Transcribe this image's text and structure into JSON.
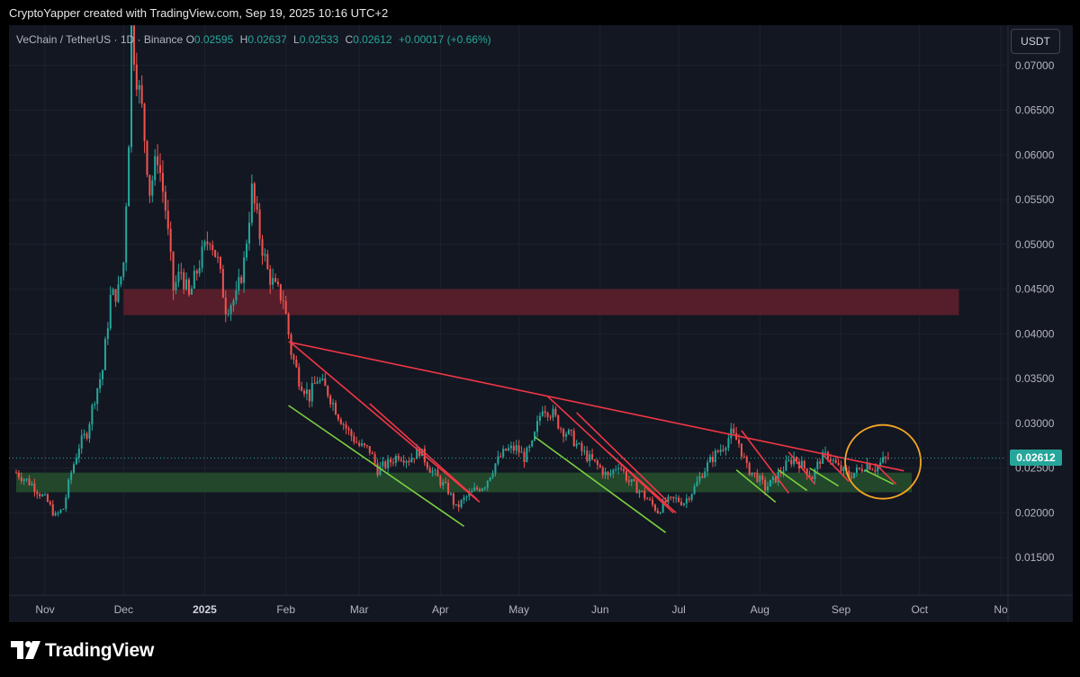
{
  "header": {
    "attribution": "CryptoYapper created with TradingView.com, Sep 19, 2025 10:16 UTC+2"
  },
  "legend": {
    "symbol": "VeChain / TetherUS · 1D · Binance",
    "o_label": "O",
    "o_value": "0.02595",
    "h_label": "H",
    "h_value": "0.02637",
    "l_label": "L",
    "l_value": "0.02533",
    "c_label": "C",
    "c_value": "0.02612",
    "change": "+0.00017 (+0.66%)"
  },
  "currency_button": "USDT",
  "last_price_label": "0.02612",
  "footer": {
    "logo_text": "TradingView",
    "logo_icon": "tradingview-logo-icon"
  },
  "colors": {
    "up": "#26a69a",
    "down": "#ef5350",
    "background": "#131722",
    "resistance_zone": "#5a1f2b",
    "support_zone": "#234a2c",
    "trendline_red": "#f23645",
    "trendline_green": "#7bcf3f",
    "highlight_circle": "#f5a623"
  },
  "chart_data": {
    "type": "candlestick",
    "x_axis": {
      "ticks": [
        {
          "label": "Nov",
          "date": "2024-11-01",
          "bold": false
        },
        {
          "label": "Dec",
          "date": "2024-12-01",
          "bold": false
        },
        {
          "label": "2025",
          "date": "2025-01-01",
          "bold": true
        },
        {
          "label": "Feb",
          "date": "2025-02-01",
          "bold": false
        },
        {
          "label": "Mar",
          "date": "2025-03-01",
          "bold": false
        },
        {
          "label": "Apr",
          "date": "2025-04-01",
          "bold": false
        },
        {
          "label": "May",
          "date": "2025-05-01",
          "bold": false
        },
        {
          "label": "Jun",
          "date": "2025-06-01",
          "bold": false
        },
        {
          "label": "Jul",
          "date": "2025-07-01",
          "bold": false
        },
        {
          "label": "Aug",
          "date": "2025-08-01",
          "bold": false
        },
        {
          "label": "Sep",
          "date": "2025-09-01",
          "bold": false
        },
        {
          "label": "Oct",
          "date": "2025-10-01",
          "bold": false
        },
        {
          "label": "No",
          "date": "2025-11-01",
          "bold": false
        }
      ]
    },
    "y_axis": {
      "ticks": [
        "0.01500",
        "0.02000",
        "0.02500",
        "0.03000",
        "0.03500",
        "0.04000",
        "0.04500",
        "0.05000",
        "0.05500",
        "0.06000",
        "0.06500",
        "0.07000"
      ],
      "range": [
        0.0108,
        0.0745
      ]
    },
    "last_price": 0.02612,
    "price_path": [
      [
        "2024-10-21",
        0.0245
      ],
      [
        "2024-10-27",
        0.0232
      ],
      [
        "2024-11-02",
        0.0212
      ],
      [
        "2024-11-05",
        0.0196
      ],
      [
        "2024-11-08",
        0.0205
      ],
      [
        "2024-11-11",
        0.0245
      ],
      [
        "2024-11-14",
        0.0275
      ],
      [
        "2024-11-17",
        0.029
      ],
      [
        "2024-11-20",
        0.033
      ],
      [
        "2024-11-23",
        0.036
      ],
      [
        "2024-11-26",
        0.044
      ],
      [
        "2024-11-29",
        0.0448
      ],
      [
        "2024-12-01",
        0.048
      ],
      [
        "2024-12-03",
        0.062
      ],
      [
        "2024-12-04",
        0.074
      ],
      [
        "2024-12-06",
        0.069
      ],
      [
        "2024-12-08",
        0.065
      ],
      [
        "2024-12-11",
        0.056
      ],
      [
        "2024-12-14",
        0.06
      ],
      [
        "2024-12-17",
        0.054
      ],
      [
        "2024-12-20",
        0.045
      ],
      [
        "2024-12-23",
        0.047
      ],
      [
        "2024-12-26",
        0.044
      ],
      [
        "2024-12-30",
        0.048
      ],
      [
        "2025-01-03",
        0.051
      ],
      [
        "2025-01-06",
        0.048
      ],
      [
        "2025-01-09",
        0.043
      ],
      [
        "2025-01-13",
        0.044
      ],
      [
        "2025-01-16",
        0.048
      ],
      [
        "2025-01-19",
        0.056
      ],
      [
        "2025-01-22",
        0.051
      ],
      [
        "2025-01-25",
        0.047
      ],
      [
        "2025-01-28",
        0.045
      ],
      [
        "2025-01-31",
        0.044
      ],
      [
        "2025-02-03",
        0.038
      ],
      [
        "2025-02-06",
        0.035
      ],
      [
        "2025-02-10",
        0.033
      ],
      [
        "2025-02-13",
        0.035
      ],
      [
        "2025-02-17",
        0.0335
      ],
      [
        "2025-02-21",
        0.031
      ],
      [
        "2025-02-25",
        0.029
      ],
      [
        "2025-03-01",
        0.0275
      ],
      [
        "2025-03-05",
        0.027
      ],
      [
        "2025-03-08",
        0.0248
      ],
      [
        "2025-03-12",
        0.0255
      ],
      [
        "2025-03-16",
        0.0265
      ],
      [
        "2025-03-20",
        0.026
      ],
      [
        "2025-03-24",
        0.027
      ],
      [
        "2025-03-28",
        0.025
      ],
      [
        "2025-04-01",
        0.0235
      ],
      [
        "2025-04-04",
        0.0225
      ],
      [
        "2025-04-07",
        0.0205
      ],
      [
        "2025-04-10",
        0.0215
      ],
      [
        "2025-04-14",
        0.0225
      ],
      [
        "2025-04-18",
        0.0232
      ],
      [
        "2025-04-22",
        0.0255
      ],
      [
        "2025-04-26",
        0.027
      ],
      [
        "2025-04-30",
        0.0272
      ],
      [
        "2025-05-03",
        0.0262
      ],
      [
        "2025-05-06",
        0.0275
      ],
      [
        "2025-05-10",
        0.032
      ],
      [
        "2025-05-14",
        0.031
      ],
      [
        "2025-05-17",
        0.0295
      ],
      [
        "2025-05-21",
        0.0285
      ],
      [
        "2025-05-24",
        0.0272
      ],
      [
        "2025-05-28",
        0.026
      ],
      [
        "2025-06-01",
        0.025
      ],
      [
        "2025-06-04",
        0.024
      ],
      [
        "2025-06-08",
        0.0255
      ],
      [
        "2025-06-12",
        0.0235
      ],
      [
        "2025-06-16",
        0.0225
      ],
      [
        "2025-06-20",
        0.0212
      ],
      [
        "2025-06-23",
        0.0202
      ],
      [
        "2025-06-26",
        0.0212
      ],
      [
        "2025-06-30",
        0.0215
      ],
      [
        "2025-07-03",
        0.0212
      ],
      [
        "2025-07-07",
        0.0228
      ],
      [
        "2025-07-10",
        0.0245
      ],
      [
        "2025-07-14",
        0.0262
      ],
      [
        "2025-07-18",
        0.0275
      ],
      [
        "2025-07-21",
        0.0288
      ],
      [
        "2025-07-24",
        0.0278
      ],
      [
        "2025-07-27",
        0.025
      ],
      [
        "2025-07-31",
        0.024
      ],
      [
        "2025-08-03",
        0.0228
      ],
      [
        "2025-08-06",
        0.0235
      ],
      [
        "2025-08-10",
        0.025
      ],
      [
        "2025-08-14",
        0.0262
      ],
      [
        "2025-08-18",
        0.025
      ],
      [
        "2025-08-21",
        0.024
      ],
      [
        "2025-08-24",
        0.026
      ],
      [
        "2025-08-27",
        0.0265
      ],
      [
        "2025-08-31",
        0.025
      ],
      [
        "2025-09-04",
        0.0242
      ],
      [
        "2025-09-08",
        0.0248
      ],
      [
        "2025-09-11",
        0.0255
      ],
      [
        "2025-09-14",
        0.025
      ],
      [
        "2025-09-17",
        0.0258
      ],
      [
        "2025-09-19",
        0.02612
      ]
    ],
    "zones": [
      {
        "name": "resistance",
        "y_low": 0.0421,
        "y_high": 0.045,
        "x_start": "2024-12-01",
        "x_end": "2025-10-16"
      },
      {
        "name": "support",
        "y_low": 0.0223,
        "y_high": 0.0245,
        "x_start": "2024-10-21",
        "x_end": "2025-09-28"
      }
    ],
    "trendlines": [
      {
        "color": "red",
        "from": [
          "2025-02-02",
          0.0391
        ],
        "to": [
          "2025-09-25",
          0.0247
        ]
      },
      {
        "color": "red",
        "from": [
          "2025-02-03",
          0.039
        ],
        "to": [
          "2025-04-16",
          0.0212
        ]
      },
      {
        "color": "red",
        "from": [
          "2025-03-05",
          0.0322
        ],
        "to": [
          "2025-04-15",
          0.0215
        ]
      },
      {
        "color": "green",
        "from": [
          "2025-02-02",
          0.032
        ],
        "to": [
          "2025-04-10",
          0.0185
        ]
      },
      {
        "color": "red",
        "from": [
          "2025-05-12",
          0.033
        ],
        "to": [
          "2025-06-29",
          0.02
        ]
      },
      {
        "color": "red",
        "from": [
          "2025-05-23",
          0.0312
        ],
        "to": [
          "2025-06-27",
          0.0212
        ]
      },
      {
        "color": "red",
        "from": [
          "2025-06-04",
          0.0268
        ],
        "to": [
          "2025-06-30",
          0.02
        ]
      },
      {
        "color": "green",
        "from": [
          "2025-05-07",
          0.0285
        ],
        "to": [
          "2025-06-26",
          0.0178
        ]
      },
      {
        "color": "red",
        "from": [
          "2025-07-25",
          0.0292
        ],
        "to": [
          "2025-08-12",
          0.0222
        ]
      },
      {
        "color": "green",
        "from": [
          "2025-07-23",
          0.0248
        ],
        "to": [
          "2025-08-07",
          0.0212
        ]
      },
      {
        "color": "red",
        "from": [
          "2025-08-12",
          0.0268
        ],
        "to": [
          "2025-08-22",
          0.0232
        ]
      },
      {
        "color": "green",
        "from": [
          "2025-08-08",
          0.0248
        ],
        "to": [
          "2025-08-19",
          0.0225
        ]
      },
      {
        "color": "red",
        "from": [
          "2025-08-25",
          0.0265
        ],
        "to": [
          "2025-09-04",
          0.0235
        ]
      },
      {
        "color": "green",
        "from": [
          "2025-08-20",
          0.025
        ],
        "to": [
          "2025-08-31",
          0.023
        ]
      },
      {
        "color": "red",
        "from": [
          "2025-09-14",
          0.0255
        ],
        "to": [
          "2025-09-22",
          0.0232
        ]
      },
      {
        "color": "green",
        "from": [
          "2025-09-10",
          0.0248
        ],
        "to": [
          "2025-09-21",
          0.0232
        ]
      }
    ],
    "highlight_circle": {
      "center": [
        "2025-09-17",
        0.0257
      ]
    }
  }
}
